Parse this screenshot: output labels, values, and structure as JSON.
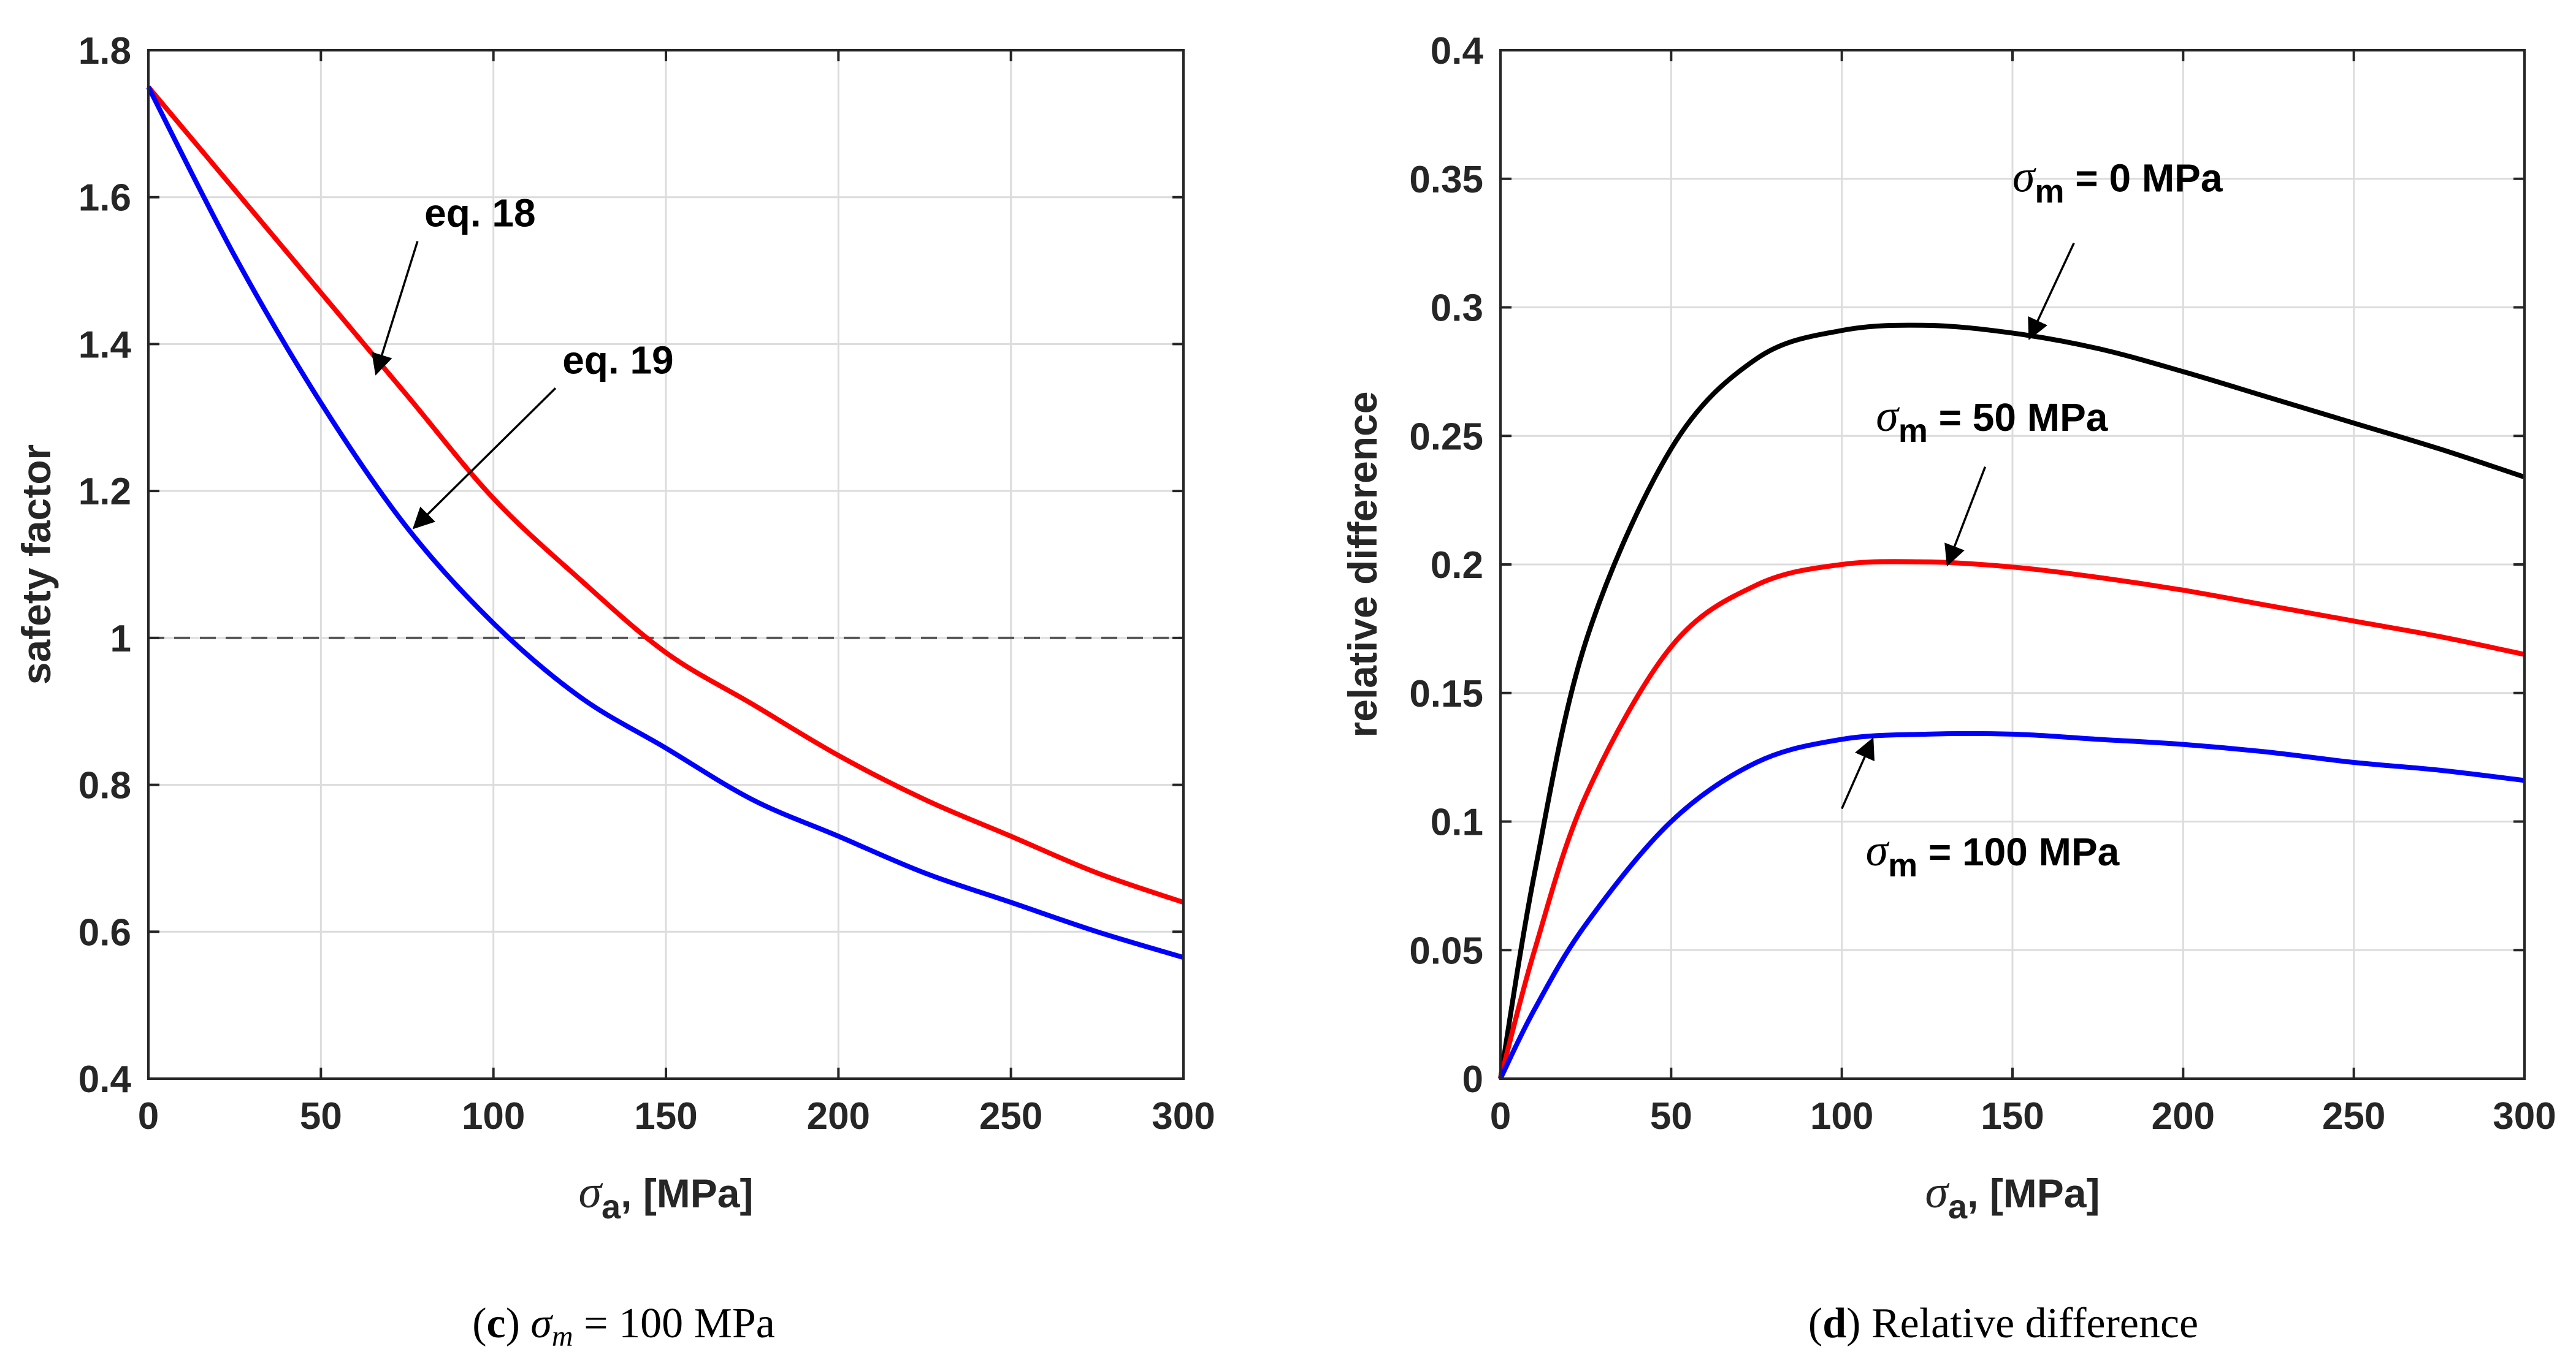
{
  "chart_data": [
    {
      "type": "line",
      "panel": "c",
      "caption": {
        "letter": "c",
        "symbol": "σ",
        "subscript": "m",
        "rest": " = 100 MPa"
      },
      "xlabel": {
        "symbol": "σ",
        "subscript": "a",
        "rest": ", [MPa]"
      },
      "ylabel": "safety factor",
      "xlim": [
        0,
        300
      ],
      "ylim": [
        0.4,
        1.8
      ],
      "xticks": [
        0,
        50,
        100,
        150,
        200,
        250,
        300
      ],
      "yticks": [
        0.4,
        0.6,
        0.8,
        1.0,
        1.2,
        1.4,
        1.6,
        1.8
      ],
      "ytick_labels": [
        "0.4",
        "0.6",
        "0.8",
        "1",
        "1.2",
        "1.4",
        "1.6",
        "1.8"
      ],
      "grid": true,
      "reference_line": {
        "y": 1,
        "style": "dashed",
        "color": "#555555"
      },
      "x": [
        0,
        25,
        50,
        75,
        100,
        125,
        150,
        175,
        200,
        225,
        250,
        275,
        300
      ],
      "series": [
        {
          "name": "eq. 18",
          "color": "#ff0000",
          "values": [
            1.75,
            1.61,
            1.47,
            1.33,
            1.19,
            1.08,
            0.98,
            0.91,
            0.84,
            0.78,
            0.73,
            0.68,
            0.64
          ]
        },
        {
          "name": "eq. 19",
          "color": "#0000ff",
          "values": [
            1.75,
            1.52,
            1.32,
            1.15,
            1.02,
            0.92,
            0.85,
            0.78,
            0.73,
            0.68,
            0.64,
            0.6,
            0.565
          ]
        }
      ],
      "annotations": [
        {
          "text": "eq. 18",
          "series": 0,
          "label_at": [
            80,
            1.56
          ],
          "arrow_from": [
            78,
            1.54
          ],
          "arrow_to": [
            66,
            1.36
          ]
        },
        {
          "text": "eq. 19",
          "series": 1,
          "label_at": [
            120,
            1.36
          ],
          "arrow_from": [
            118,
            1.34
          ],
          "arrow_to": [
            77,
            1.15
          ]
        }
      ]
    },
    {
      "type": "line",
      "panel": "d",
      "caption": {
        "letter": "d",
        "rest": " Relative difference"
      },
      "xlabel": {
        "symbol": "σ",
        "subscript": "a",
        "rest": ", [MPa]"
      },
      "ylabel": "relative difference",
      "xlim": [
        0,
        300
      ],
      "ylim": [
        0,
        0.4
      ],
      "xticks": [
        0,
        50,
        100,
        150,
        200,
        250,
        300
      ],
      "yticks": [
        0,
        0.05,
        0.1,
        0.15,
        0.2,
        0.25,
        0.3,
        0.35,
        0.4
      ],
      "ytick_labels": [
        "0",
        "0.05",
        "0.1",
        "0.15",
        "0.2",
        "0.25",
        "0.3",
        "0.35",
        "0.4"
      ],
      "grid": true,
      "x": [
        0,
        10,
        25,
        50,
        75,
        100,
        125,
        150,
        175,
        200,
        225,
        250,
        275,
        300
      ],
      "series": [
        {
          "name": "σm = 0 MPa",
          "color": "#000000",
          "values": [
            0,
            0.08,
            0.17,
            0.245,
            0.28,
            0.291,
            0.293,
            0.29,
            0.284,
            0.275,
            0.265,
            0.255,
            0.245,
            0.234
          ]
        },
        {
          "name": "σm = 50 MPa",
          "color": "#ff0000",
          "values": [
            0,
            0.05,
            0.11,
            0.168,
            0.192,
            0.2,
            0.201,
            0.199,
            0.195,
            0.19,
            0.184,
            0.178,
            0.172,
            0.165
          ]
        },
        {
          "name": "σm = 100 MPa",
          "color": "#0000ff",
          "values": [
            0,
            0.027,
            0.06,
            0.1,
            0.123,
            0.132,
            0.134,
            0.134,
            0.132,
            0.13,
            0.127,
            0.123,
            0.12,
            0.116
          ]
        }
      ],
      "annotations": [
        {
          "symbol": "σ",
          "subscript": "m",
          "rest": " = 0 MPa",
          "label_at": [
            150,
            0.345
          ],
          "arrow_from": [
            168,
            0.325
          ],
          "arrow_to": [
            155,
            0.288
          ]
        },
        {
          "symbol": "σ",
          "subscript": "m",
          "rest": " = 50 MPa",
          "label_at": [
            110,
            0.252
          ],
          "arrow_from": [
            142,
            0.238
          ],
          "arrow_to": [
            131,
            0.2
          ]
        },
        {
          "symbol": "σ",
          "subscript": "m",
          "rest": " = 100 MPa",
          "label_at": [
            107,
            0.083
          ],
          "arrow_from": [
            100,
            0.105
          ],
          "arrow_to": [
            109,
            0.132
          ]
        }
      ]
    }
  ]
}
